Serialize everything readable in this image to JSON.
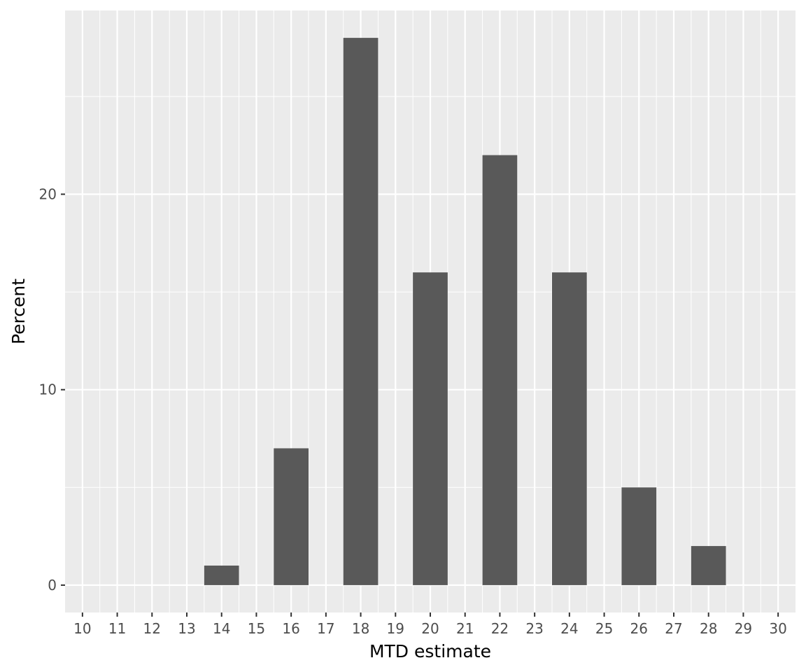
{
  "chart_data": {
    "type": "bar",
    "xlabel": "MTD estimate",
    "ylabel": "Percent",
    "x": [
      14,
      16,
      18,
      20,
      22,
      24,
      26,
      28
    ],
    "values": [
      1,
      7,
      28,
      16,
      22,
      16,
      5,
      2
    ],
    "xlim": [
      9.5,
      30.5
    ],
    "ylim": [
      -1.4,
      29.4
    ],
    "x_ticks": [
      10,
      11,
      12,
      13,
      14,
      15,
      16,
      17,
      18,
      19,
      20,
      21,
      22,
      23,
      24,
      25,
      26,
      27,
      28,
      29,
      30
    ],
    "x_tick_labels": [
      "10",
      "11",
      "12",
      "13",
      "14",
      "15",
      "16",
      "17",
      "18",
      "19",
      "20",
      "21",
      "22",
      "23",
      "24",
      "25",
      "26",
      "27",
      "28",
      "29",
      "30"
    ],
    "y_ticks": [
      0,
      10,
      20
    ],
    "y_tick_labels": [
      "0",
      "10",
      "20"
    ],
    "y_minor_ticks": [
      5,
      15,
      25
    ],
    "bar_width": 1,
    "grid": true,
    "panel_background": "#EBEBEB",
    "grid_color": "#FFFFFF",
    "bar_color": "#595959"
  }
}
